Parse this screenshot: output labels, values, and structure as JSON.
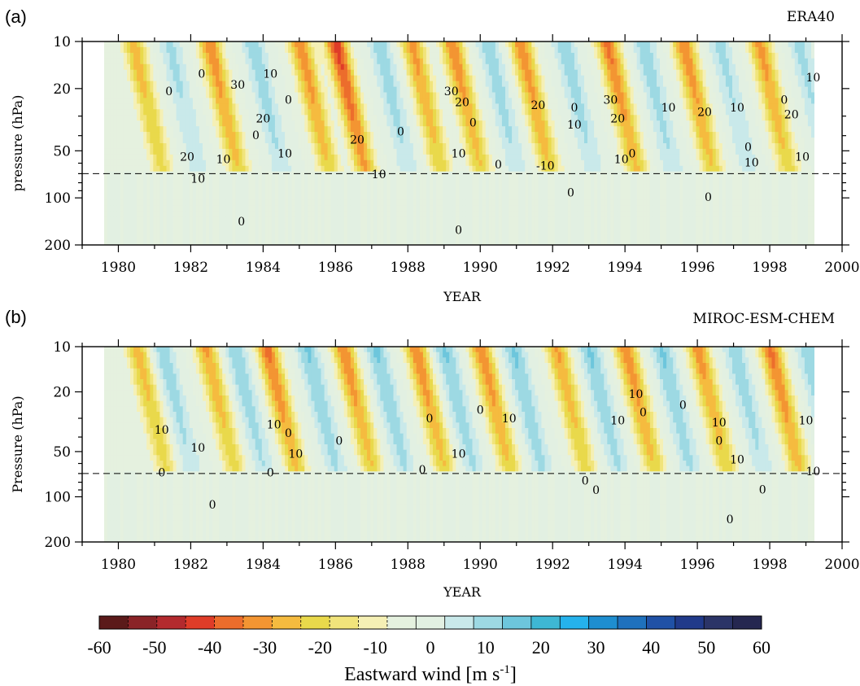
{
  "chart_data": [
    {
      "type": "heatmap",
      "panel_label": "(a)",
      "title": "ERA40",
      "xlabel": "YEAR",
      "ylabel": "pressure (hPa)",
      "x_ticks": [
        1980,
        1982,
        1984,
        1986,
        1988,
        1990,
        1992,
        1994,
        1996,
        1998,
        2000
      ],
      "y_ticks": [
        10,
        20,
        50,
        100,
        200
      ],
      "xlim": [
        1979,
        2000
      ],
      "x_data_range": [
        1979.6,
        1999.6
      ],
      "ylim": [
        200,
        10
      ],
      "y_scale": "log",
      "reference_line_hPa": 70,
      "qbo_phases": [
        {
          "year": 1980.4,
          "amplitude": 24,
          "sign": -1
        },
        {
          "year": 1981.4,
          "amplitude": 12,
          "sign": 1
        },
        {
          "year": 1982.5,
          "amplitude": 30,
          "sign": -1
        },
        {
          "year": 1983.7,
          "amplitude": 14,
          "sign": 1
        },
        {
          "year": 1985.0,
          "amplitude": 30,
          "sign": -1
        },
        {
          "year": 1986.0,
          "amplitude": 38,
          "sign": -1
        },
        {
          "year": 1987.2,
          "amplitude": 14,
          "sign": 1
        },
        {
          "year": 1988.1,
          "amplitude": 28,
          "sign": -1
        },
        {
          "year": 1989.2,
          "amplitude": 30,
          "sign": -1
        },
        {
          "year": 1990.2,
          "amplitude": 14,
          "sign": 1
        },
        {
          "year": 1991.1,
          "amplitude": 30,
          "sign": -1
        },
        {
          "year": 1992.3,
          "amplitude": 14,
          "sign": 1
        },
        {
          "year": 1993.5,
          "amplitude": 32,
          "sign": -1
        },
        {
          "year": 1994.5,
          "amplitude": 14,
          "sign": 1
        },
        {
          "year": 1995.6,
          "amplitude": 30,
          "sign": -1
        },
        {
          "year": 1996.6,
          "amplitude": 12,
          "sign": 1
        },
        {
          "year": 1997.7,
          "amplitude": 28,
          "sign": -1
        },
        {
          "year": 1998.8,
          "amplitude": 12,
          "sign": 1
        }
      ],
      "contour_labels": [
        {
          "text": "0",
          "year": 1981.4,
          "hPa": 22
        },
        {
          "text": "0",
          "year": 1982.3,
          "hPa": 17
        },
        {
          "text": "20",
          "year": 1981.9,
          "hPa": 58
        },
        {
          "text": "10",
          "year": 1982.2,
          "hPa": 80
        },
        {
          "text": "10",
          "year": 1982.9,
          "hPa": 60
        },
        {
          "text": "30",
          "year": 1983.3,
          "hPa": 20
        },
        {
          "text": "10",
          "year": 1984.2,
          "hPa": 17
        },
        {
          "text": "0",
          "year": 1984.7,
          "hPa": 25
        },
        {
          "text": "20",
          "year": 1984.0,
          "hPa": 33
        },
        {
          "text": "0",
          "year": 1983.8,
          "hPa": 42
        },
        {
          "text": "10",
          "year": 1984.6,
          "hPa": 55
        },
        {
          "text": "0",
          "year": 1983.4,
          "hPa": 150
        },
        {
          "text": "20",
          "year": 1986.6,
          "hPa": 45
        },
        {
          "text": "10",
          "year": 1987.2,
          "hPa": 75
        },
        {
          "text": "0",
          "year": 1987.8,
          "hPa": 40
        },
        {
          "text": "30",
          "year": 1989.2,
          "hPa": 22
        },
        {
          "text": "20",
          "year": 1989.5,
          "hPa": 26
        },
        {
          "text": "10",
          "year": 1989.4,
          "hPa": 55
        },
        {
          "text": "0",
          "year": 1989.8,
          "hPa": 35
        },
        {
          "text": "0",
          "year": 1990.5,
          "hPa": 65
        },
        {
          "text": "0",
          "year": 1989.4,
          "hPa": 170
        },
        {
          "text": "20",
          "year": 1991.6,
          "hPa": 27
        },
        {
          "text": "0",
          "year": 1992.6,
          "hPa": 28
        },
        {
          "text": "10",
          "year": 1992.6,
          "hPa": 36
        },
        {
          "text": "-10",
          "year": 1991.8,
          "hPa": 66
        },
        {
          "text": "0",
          "year": 1992.5,
          "hPa": 98
        },
        {
          "text": "30",
          "year": 1993.6,
          "hPa": 25
        },
        {
          "text": "20",
          "year": 1993.8,
          "hPa": 33
        },
        {
          "text": "10",
          "year": 1993.9,
          "hPa": 60
        },
        {
          "text": "0",
          "year": 1994.2,
          "hPa": 55
        },
        {
          "text": "10",
          "year": 1995.2,
          "hPa": 28
        },
        {
          "text": "20",
          "year": 1996.2,
          "hPa": 30
        },
        {
          "text": "0",
          "year": 1996.3,
          "hPa": 105
        },
        {
          "text": "10",
          "year": 1997.1,
          "hPa": 28
        },
        {
          "text": "0",
          "year": 1997.4,
          "hPa": 50
        },
        {
          "text": "10",
          "year": 1997.5,
          "hPa": 63
        },
        {
          "text": "0",
          "year": 1998.4,
          "hPa": 25
        },
        {
          "text": "20",
          "year": 1998.6,
          "hPa": 31
        },
        {
          "text": "10",
          "year": 1998.9,
          "hPa": 58
        },
        {
          "text": "10",
          "year": 1999.2,
          "hPa": 18
        }
      ]
    },
    {
      "type": "heatmap",
      "panel_label": "(b)",
      "title": "MIROC-ESM-CHEM",
      "xlabel": "YEAR",
      "ylabel": "Pressure (hPa)",
      "x_ticks": [
        1980,
        1982,
        1984,
        1986,
        1988,
        1990,
        1992,
        1994,
        1996,
        1998,
        2000
      ],
      "y_ticks": [
        10,
        20,
        50,
        100,
        200
      ],
      "xlim": [
        1979,
        2000
      ],
      "x_data_range": [
        1979.6,
        1999.6
      ],
      "ylim": [
        200,
        10
      ],
      "y_scale": "log",
      "reference_line_hPa": 70,
      "qbo_phases": [
        {
          "year": 1980.5,
          "amplitude": 24,
          "sign": -1
        },
        {
          "year": 1981.2,
          "amplitude": 14,
          "sign": 1
        },
        {
          "year": 1982.4,
          "amplitude": 26,
          "sign": -1
        },
        {
          "year": 1983.2,
          "amplitude": 15,
          "sign": 1
        },
        {
          "year": 1984.1,
          "amplitude": 32,
          "sign": -1
        },
        {
          "year": 1985.2,
          "amplitude": 16,
          "sign": 1
        },
        {
          "year": 1986.2,
          "amplitude": 30,
          "sign": -1
        },
        {
          "year": 1987.1,
          "amplitude": 16,
          "sign": 1
        },
        {
          "year": 1988.2,
          "amplitude": 30,
          "sign": -1
        },
        {
          "year": 1989.0,
          "amplitude": 16,
          "sign": 1
        },
        {
          "year": 1990.0,
          "amplitude": 30,
          "sign": -1
        },
        {
          "year": 1990.9,
          "amplitude": 16,
          "sign": 1
        },
        {
          "year": 1992.1,
          "amplitude": 26,
          "sign": -1
        },
        {
          "year": 1993.0,
          "amplitude": 16,
          "sign": 1
        },
        {
          "year": 1994.0,
          "amplitude": 30,
          "sign": -1
        },
        {
          "year": 1995.0,
          "amplitude": 16,
          "sign": 1
        },
        {
          "year": 1996.0,
          "amplitude": 28,
          "sign": -1
        },
        {
          "year": 1997.0,
          "amplitude": 14,
          "sign": 1
        },
        {
          "year": 1998.0,
          "amplitude": 32,
          "sign": -1
        },
        {
          "year": 1999.0,
          "amplitude": 14,
          "sign": 1
        }
      ],
      "contour_labels": [
        {
          "text": "10",
          "year": 1981.2,
          "hPa": 38
        },
        {
          "text": "0",
          "year": 1981.2,
          "hPa": 73
        },
        {
          "text": "10",
          "year": 1982.2,
          "hPa": 50
        },
        {
          "text": "0",
          "year": 1982.6,
          "hPa": 120
        },
        {
          "text": "10",
          "year": 1984.3,
          "hPa": 35
        },
        {
          "text": "0",
          "year": 1984.7,
          "hPa": 40
        },
        {
          "text": "10",
          "year": 1984.9,
          "hPa": 55
        },
        {
          "text": "0",
          "year": 1984.2,
          "hPa": 73
        },
        {
          "text": "0",
          "year": 1986.1,
          "hPa": 45
        },
        {
          "text": "0",
          "year": 1988.4,
          "hPa": 70
        },
        {
          "text": "0",
          "year": 1988.6,
          "hPa": 32
        },
        {
          "text": "10",
          "year": 1989.4,
          "hPa": 55
        },
        {
          "text": "0",
          "year": 1990.0,
          "hPa": 28
        },
        {
          "text": "10",
          "year": 1990.8,
          "hPa": 32
        },
        {
          "text": "0",
          "year": 1992.9,
          "hPa": 83
        },
        {
          "text": "0",
          "year": 1993.2,
          "hPa": 96
        },
        {
          "text": "10",
          "year": 1993.8,
          "hPa": 33
        },
        {
          "text": "10",
          "year": 1994.3,
          "hPa": 22
        },
        {
          "text": "0",
          "year": 1994.5,
          "hPa": 29
        },
        {
          "text": "0",
          "year": 1995.6,
          "hPa": 26
        },
        {
          "text": "10",
          "year": 1996.6,
          "hPa": 34
        },
        {
          "text": "0",
          "year": 1996.6,
          "hPa": 45
        },
        {
          "text": "10",
          "year": 1997.1,
          "hPa": 60
        },
        {
          "text": "0",
          "year": 1997.8,
          "hPa": 95
        },
        {
          "text": "0",
          "year": 1996.9,
          "hPa": 150
        },
        {
          "text": "10",
          "year": 1999.0,
          "hPa": 33
        },
        {
          "text": "10",
          "year": 1999.2,
          "hPa": 72
        }
      ]
    }
  ],
  "colorbar": {
    "label": "Eastward wind [m s-1]",
    "label_main": "Eastward wind [m s",
    "label_sup": "-1",
    "label_end": "]",
    "min": -60,
    "max": 60,
    "step": 5,
    "tick_values": [
      -60,
      -50,
      -40,
      -30,
      -20,
      -10,
      0,
      10,
      20,
      30,
      40,
      50,
      60
    ],
    "tick_labels": [
      "-60",
      "-50",
      "-40",
      "-30",
      "-20",
      "-10",
      "0",
      "10",
      "20",
      "30",
      "40",
      "50",
      "60"
    ],
    "colors": [
      "#5b1a1a",
      "#8a2327",
      "#b32a2e",
      "#df3c28",
      "#ec6d2c",
      "#f39532",
      "#f5bb3f",
      "#e9d94b",
      "#f1e47b",
      "#f5f0b5",
      "#e5f1df",
      "#e2f0e2",
      "#c9e9ea",
      "#9dd9e3",
      "#6dc6dc",
      "#3eb7d4",
      "#25b2ec",
      "#1e8ed0",
      "#1f71bd",
      "#2051a6",
      "#213a8a",
      "#2b3467",
      "#252750"
    ]
  }
}
